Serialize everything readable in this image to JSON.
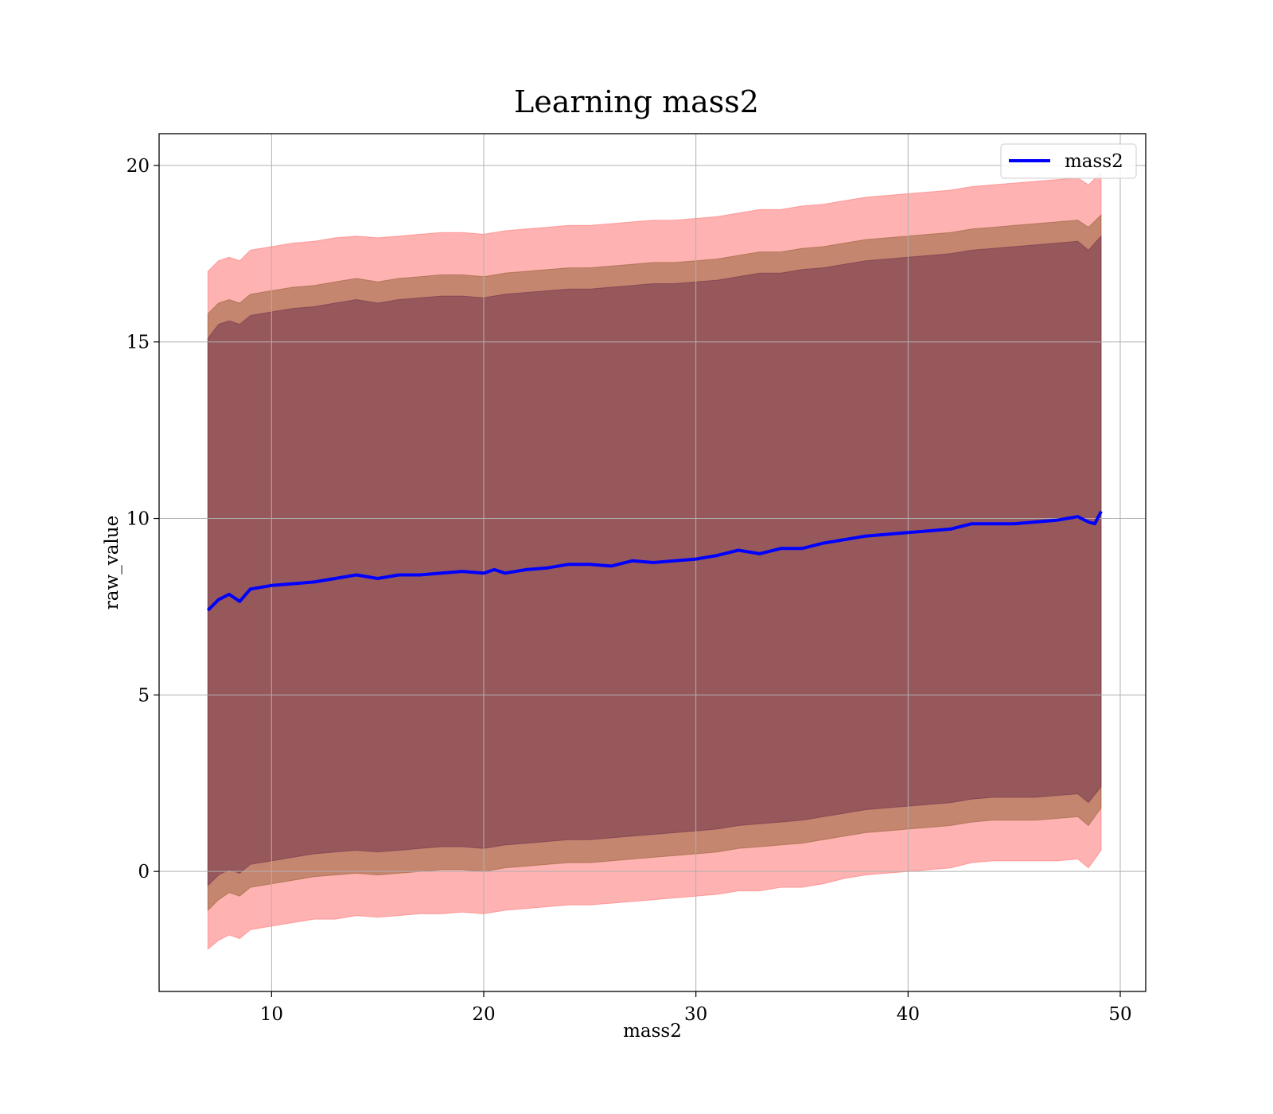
{
  "chart_data": {
    "type": "line",
    "title": "Learning mass2",
    "xlabel": "mass2",
    "ylabel": "raw_value",
    "xlim": [
      4.7,
      51.2
    ],
    "ylim": [
      -3.4,
      20.9
    ],
    "xticks": [
      10,
      20,
      30,
      40,
      50
    ],
    "xtick_labels": [
      "10",
      "20",
      "30",
      "40",
      "50"
    ],
    "yticks": [
      0,
      5,
      10,
      15,
      20
    ],
    "ytick_labels": [
      "0",
      "5",
      "10",
      "15",
      "20"
    ],
    "grid": true,
    "legend_position": "top-right",
    "series": [
      {
        "name": "mass2",
        "color": "#0000ff",
        "x": [
          7.0,
          7.5,
          8.0,
          8.5,
          9.0,
          10.0,
          11.0,
          12.0,
          13.0,
          14.0,
          15.0,
          16.0,
          17.0,
          18.0,
          19.0,
          20.0,
          20.5,
          21.0,
          22.0,
          23.0,
          24.0,
          25.0,
          26.0,
          27.0,
          28.0,
          29.0,
          30.0,
          31.0,
          32.0,
          33.0,
          34.0,
          35.0,
          36.0,
          37.0,
          38.0,
          39.0,
          40.0,
          41.0,
          42.0,
          43.0,
          44.0,
          45.0,
          46.0,
          47.0,
          47.5,
          48.0,
          48.5,
          48.8,
          49.1
        ],
        "y": [
          7.4,
          7.7,
          7.85,
          7.65,
          8.0,
          8.1,
          8.15,
          8.2,
          8.3,
          8.4,
          8.3,
          8.4,
          8.4,
          8.45,
          8.5,
          8.45,
          8.55,
          8.45,
          8.55,
          8.6,
          8.7,
          8.7,
          8.65,
          8.8,
          8.75,
          8.8,
          8.85,
          8.95,
          9.1,
          9.0,
          9.15,
          9.15,
          9.3,
          9.4,
          9.5,
          9.55,
          9.6,
          9.65,
          9.7,
          9.85,
          9.85,
          9.85,
          9.9,
          9.95,
          10.0,
          10.05,
          9.9,
          9.85,
          10.2
        ]
      }
    ],
    "bands": [
      {
        "color": "#ff6666",
        "x": [
          7.0,
          7.5,
          8.0,
          8.5,
          9.0,
          10.0,
          11.0,
          12.0,
          13.0,
          14.0,
          15.0,
          16.0,
          17.0,
          18.0,
          19.0,
          20.0,
          21.0,
          22.0,
          23.0,
          24.0,
          25.0,
          26.0,
          27.0,
          28.0,
          29.0,
          30.0,
          31.0,
          32.0,
          33.0,
          34.0,
          35.0,
          36.0,
          37.0,
          38.0,
          39.0,
          40.0,
          41.0,
          42.0,
          43.0,
          44.0,
          45.0,
          46.0,
          47.0,
          48.0,
          48.5,
          49.1
        ],
        "upper": [
          17.0,
          17.3,
          17.4,
          17.3,
          17.6,
          17.7,
          17.8,
          17.85,
          17.95,
          18.0,
          17.95,
          18.0,
          18.05,
          18.1,
          18.1,
          18.05,
          18.15,
          18.2,
          18.25,
          18.3,
          18.3,
          18.35,
          18.4,
          18.45,
          18.45,
          18.5,
          18.55,
          18.65,
          18.75,
          18.75,
          18.85,
          18.9,
          19.0,
          19.1,
          19.15,
          19.2,
          19.25,
          19.3,
          19.4,
          19.45,
          19.5,
          19.55,
          19.6,
          19.65,
          19.45,
          19.8
        ],
        "lower": [
          -2.2,
          -1.95,
          -1.8,
          -1.9,
          -1.65,
          -1.55,
          -1.45,
          -1.35,
          -1.35,
          -1.25,
          -1.3,
          -1.25,
          -1.2,
          -1.2,
          -1.15,
          -1.2,
          -1.1,
          -1.05,
          -1.0,
          -0.95,
          -0.95,
          -0.9,
          -0.85,
          -0.8,
          -0.75,
          -0.7,
          -0.65,
          -0.55,
          -0.55,
          -0.45,
          -0.45,
          -0.35,
          -0.2,
          -0.1,
          -0.05,
          0.0,
          0.05,
          0.1,
          0.25,
          0.3,
          0.3,
          0.3,
          0.3,
          0.35,
          0.1,
          0.6
        ]
      },
      {
        "color": "#8b5a2b",
        "x": [
          7.0,
          7.5,
          8.0,
          8.5,
          9.0,
          10.0,
          11.0,
          12.0,
          13.0,
          14.0,
          15.0,
          16.0,
          17.0,
          18.0,
          19.0,
          20.0,
          21.0,
          22.0,
          23.0,
          24.0,
          25.0,
          26.0,
          27.0,
          28.0,
          29.0,
          30.0,
          31.0,
          32.0,
          33.0,
          34.0,
          35.0,
          36.0,
          37.0,
          38.0,
          39.0,
          40.0,
          41.0,
          42.0,
          43.0,
          44.0,
          45.0,
          46.0,
          47.0,
          48.0,
          48.5,
          49.1
        ],
        "upper": [
          15.8,
          16.1,
          16.2,
          16.1,
          16.35,
          16.45,
          16.55,
          16.6,
          16.7,
          16.8,
          16.7,
          16.8,
          16.85,
          16.9,
          16.9,
          16.85,
          16.95,
          17.0,
          17.05,
          17.1,
          17.1,
          17.15,
          17.2,
          17.25,
          17.25,
          17.3,
          17.35,
          17.45,
          17.55,
          17.55,
          17.65,
          17.7,
          17.8,
          17.9,
          17.95,
          18.0,
          18.05,
          18.1,
          18.2,
          18.25,
          18.3,
          18.35,
          18.4,
          18.45,
          18.25,
          18.6
        ],
        "lower": [
          -1.1,
          -0.8,
          -0.6,
          -0.7,
          -0.45,
          -0.35,
          -0.25,
          -0.15,
          -0.1,
          -0.05,
          -0.1,
          -0.05,
          0.0,
          0.05,
          0.05,
          0.0,
          0.1,
          0.15,
          0.2,
          0.25,
          0.25,
          0.3,
          0.35,
          0.4,
          0.45,
          0.5,
          0.55,
          0.65,
          0.7,
          0.75,
          0.8,
          0.9,
          1.0,
          1.1,
          1.15,
          1.2,
          1.25,
          1.3,
          1.4,
          1.45,
          1.45,
          1.45,
          1.5,
          1.55,
          1.3,
          1.8
        ]
      },
      {
        "color": "#6a2a4a",
        "x": [
          7.0,
          7.5,
          8.0,
          8.5,
          9.0,
          10.0,
          11.0,
          12.0,
          13.0,
          14.0,
          15.0,
          16.0,
          17.0,
          18.0,
          19.0,
          20.0,
          21.0,
          22.0,
          23.0,
          24.0,
          25.0,
          26.0,
          27.0,
          28.0,
          29.0,
          30.0,
          31.0,
          32.0,
          33.0,
          34.0,
          35.0,
          36.0,
          37.0,
          38.0,
          39.0,
          40.0,
          41.0,
          42.0,
          43.0,
          44.0,
          45.0,
          46.0,
          47.0,
          48.0,
          48.5,
          49.1
        ],
        "upper": [
          15.1,
          15.5,
          15.6,
          15.5,
          15.75,
          15.85,
          15.95,
          16.0,
          16.1,
          16.2,
          16.1,
          16.2,
          16.25,
          16.3,
          16.3,
          16.25,
          16.35,
          16.4,
          16.45,
          16.5,
          16.5,
          16.55,
          16.6,
          16.65,
          16.65,
          16.7,
          16.75,
          16.85,
          16.95,
          16.95,
          17.05,
          17.1,
          17.2,
          17.3,
          17.35,
          17.4,
          17.45,
          17.5,
          17.6,
          17.65,
          17.7,
          17.75,
          17.8,
          17.85,
          17.6,
          18.0
        ],
        "lower": [
          -0.4,
          -0.1,
          0.05,
          -0.05,
          0.2,
          0.3,
          0.4,
          0.5,
          0.55,
          0.6,
          0.55,
          0.6,
          0.65,
          0.7,
          0.7,
          0.65,
          0.75,
          0.8,
          0.85,
          0.9,
          0.9,
          0.95,
          1.0,
          1.05,
          1.1,
          1.15,
          1.2,
          1.3,
          1.35,
          1.4,
          1.45,
          1.55,
          1.65,
          1.75,
          1.8,
          1.85,
          1.9,
          1.95,
          2.05,
          2.1,
          2.1,
          2.1,
          2.15,
          2.2,
          1.95,
          2.4
        ]
      }
    ]
  }
}
